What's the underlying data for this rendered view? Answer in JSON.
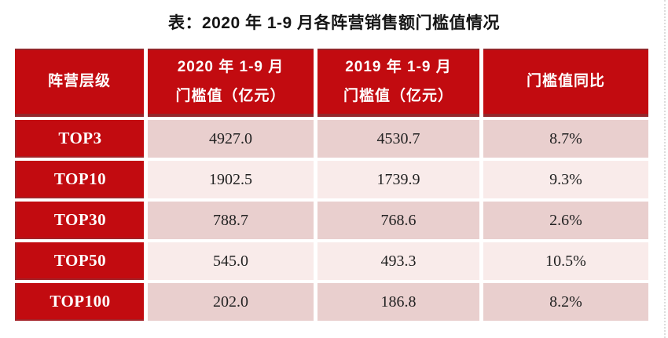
{
  "title": "表：2020 年 1-9 月各阵营销售额门槛值情况",
  "table": {
    "header": {
      "col1": "阵营层级",
      "col2_line1": "2020 年 1-9 月",
      "col2_line2": "门槛值（亿元）",
      "col3_line1": "2019 年 1-9 月",
      "col3_line2": "门槛值（亿元）",
      "col4": "门槛值同比"
    },
    "rows": [
      {
        "tier": "TOP3",
        "v2020": "4927.0",
        "v2019": "4530.7",
        "yoy": "8.7%"
      },
      {
        "tier": "TOP10",
        "v2020": "1902.5",
        "v2019": "1739.9",
        "yoy": "9.3%"
      },
      {
        "tier": "TOP30",
        "v2020": "788.7",
        "v2019": "768.6",
        "yoy": "2.6%"
      },
      {
        "tier": "TOP50",
        "v2020": "545.0",
        "v2019": "493.3",
        "yoy": "10.5%"
      },
      {
        "tier": "TOP100",
        "v2020": "202.0",
        "v2019": "186.8",
        "yoy": "8.2%"
      }
    ]
  },
  "chart_data": {
    "type": "table",
    "title": "表：2020 年 1-9 月各阵营销售额门槛值情况",
    "columns": [
      "阵营层级",
      "2020 年 1-9 月门槛值（亿元）",
      "2019 年 1-9 月门槛值（亿元）",
      "门槛值同比"
    ],
    "rows": [
      [
        "TOP3",
        4927.0,
        4530.7,
        "8.7%"
      ],
      [
        "TOP10",
        1902.5,
        1739.9,
        "9.3%"
      ],
      [
        "TOP30",
        788.7,
        768.6,
        "2.6%"
      ],
      [
        "TOP50",
        545.0,
        493.3,
        "10.5%"
      ],
      [
        "TOP100",
        202.0,
        186.8,
        "8.2%"
      ]
    ],
    "yoy_values_pct": [
      8.7,
      9.3,
      2.6,
      10.5,
      8.2
    ]
  },
  "colors": {
    "header_red": "#c20b10",
    "border_dark_red": "#93272b",
    "row_dark_pink": "#e9cfce",
    "row_light_pink": "#f9ebea",
    "header_text": "#ffffff",
    "body_text": "#222222"
  }
}
